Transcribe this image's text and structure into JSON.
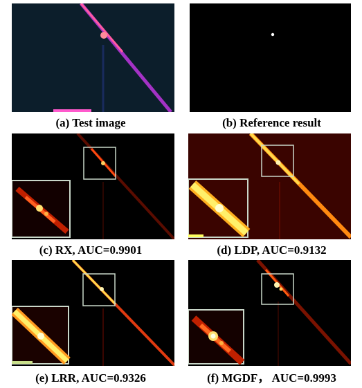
{
  "figure": {
    "panels": [
      {
        "id": "a",
        "caption": "(a) Test image"
      },
      {
        "id": "b",
        "caption": "(b) Reference result"
      },
      {
        "id": "c",
        "caption": "(c) RX, AUC=0.9901"
      },
      {
        "id": "d",
        "caption": "(d) LDP, AUC=0.9132"
      },
      {
        "id": "e",
        "caption": "(e) LRR, AUC=0.9326"
      },
      {
        "id": "f",
        "caption": "(f) MGDF， AUC=0.9993"
      }
    ]
  },
  "colors": {
    "panel_background": "#000000",
    "test_image_background": "#0c1e2b",
    "test_stripe": "#b535d6",
    "heat_low": "#3a0400",
    "heat_mid": "#ff4a10",
    "heat_high": "#ffef8a",
    "zoom_box": "#c9d7c9"
  }
}
